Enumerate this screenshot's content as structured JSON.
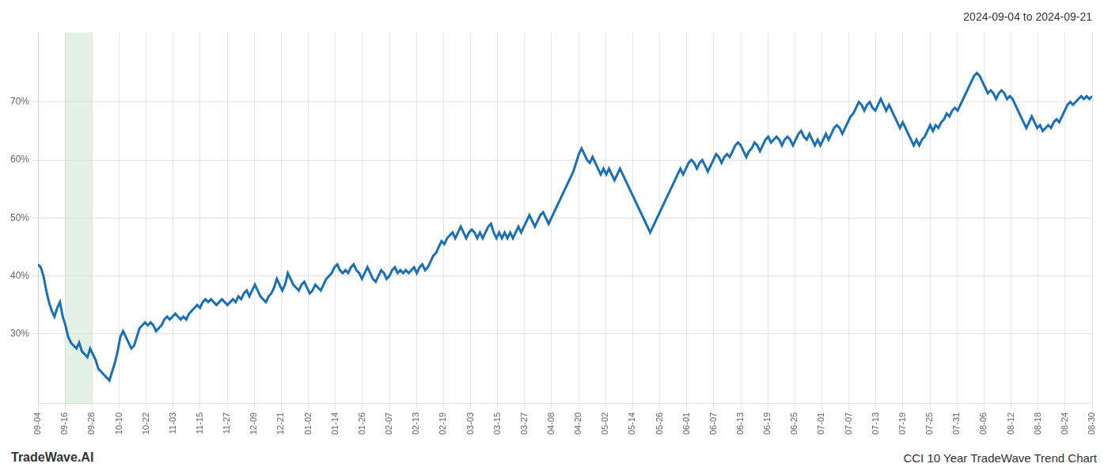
{
  "chart_data": {
    "type": "line",
    "title": "2024-09-04 to 2024-09-21",
    "annotations": [
      "TradeWave.AI",
      "CCI 10 Year TradeWave Trend Chart"
    ],
    "color": "#1a6fb5",
    "grid": true,
    "spans": [
      {
        "xmin": 9.846153846,
        "xmax": 19.692307692,
        "color": "#c8e6c9"
      }
    ],
    "xlim": [
      0,
      384
    ],
    "xticks": [
      {
        "value": 0,
        "label": "09-04"
      },
      {
        "value": 9.846153846,
        "label": "09-16"
      },
      {
        "value": 19.692307692,
        "label": "09-28"
      },
      {
        "value": 29.538461538,
        "label": "10-10"
      },
      {
        "value": 39.384615385,
        "label": "10-22"
      },
      {
        "value": 49.230769231,
        "label": "11-03"
      },
      {
        "value": 59.076923077,
        "label": "11-15"
      },
      {
        "value": 68.923076923,
        "label": "11-27"
      },
      {
        "value": 78.769230769,
        "label": "12-09"
      },
      {
        "value": 88.615384615,
        "label": "12-21"
      },
      {
        "value": 98.461538462,
        "label": "01-02"
      },
      {
        "value": 108.307692308,
        "label": "01-14"
      },
      {
        "value": 118.153846154,
        "label": "01-26"
      },
      {
        "value": 128,
        "label": "02-07"
      },
      {
        "value": 137.846153846,
        "label": "02-13"
      },
      {
        "value": 147.692307692,
        "label": "02-19"
      },
      {
        "value": 157.538461538,
        "label": "03-03"
      },
      {
        "value": 167.384615385,
        "label": "03-15"
      },
      {
        "value": 177.230769231,
        "label": "03-27"
      },
      {
        "value": 187.076923077,
        "label": "04-08"
      },
      {
        "value": 196.923076923,
        "label": "04-20"
      },
      {
        "value": 206.769230769,
        "label": "05-02"
      },
      {
        "value": 216.615384615,
        "label": "05-14"
      },
      {
        "value": 226.461538462,
        "label": "05-26"
      },
      {
        "value": 236.307692308,
        "label": "06-01"
      },
      {
        "value": 246.153846154,
        "label": "06-07"
      },
      {
        "value": 256,
        "label": "06-13"
      },
      {
        "value": 265.846153846,
        "label": "06-19"
      },
      {
        "value": 275.692307692,
        "label": "06-25"
      },
      {
        "value": 285.538461538,
        "label": "07-01"
      },
      {
        "value": 295.384615385,
        "label": "07-07"
      },
      {
        "value": 305.230769231,
        "label": "07-13"
      },
      {
        "value": 315.076923077,
        "label": "07-19"
      },
      {
        "value": 324.923076923,
        "label": "07-25"
      },
      {
        "value": 334.769230769,
        "label": "07-31"
      },
      {
        "value": 344.615384615,
        "label": "08-06"
      },
      {
        "value": 354.461538462,
        "label": "08-12"
      },
      {
        "value": 364.307692308,
        "label": "08-18"
      },
      {
        "value": 374.153846154,
        "label": "08-24"
      },
      {
        "value": 384,
        "label": "08-30"
      }
    ],
    "ylim": [
      18,
      82
    ],
    "yticks": [
      {
        "value": 30,
        "label": "30%"
      },
      {
        "value": 40,
        "label": "40%"
      },
      {
        "value": 50,
        "label": "50%"
      },
      {
        "value": 60,
        "label": "60%"
      },
      {
        "value": 70,
        "label": "70%"
      }
    ],
    "values": [
      42.0,
      41.5,
      40.0,
      37.5,
      35.5,
      34.0,
      33.0,
      34.5,
      35.5,
      33.0,
      31.5,
      29.5,
      28.5,
      28.0,
      27.5,
      28.5,
      27.0,
      26.5,
      26.0,
      27.5,
      26.5,
      25.5,
      24.0,
      23.5,
      23.0,
      22.5,
      22.0,
      23.5,
      25.0,
      27.0,
      29.5,
      30.5,
      29.5,
      28.5,
      27.5,
      28.0,
      29.5,
      31.0,
      31.5,
      32.0,
      31.5,
      32.0,
      31.5,
      30.5,
      31.0,
      31.5,
      32.5,
      33.0,
      32.5,
      33.0,
      33.5,
      33.0,
      32.5,
      33.0,
      32.5,
      33.5,
      34.0,
      34.5,
      35.0,
      34.5,
      35.5,
      36.0,
      35.5,
      36.0,
      35.5,
      35.0,
      35.5,
      36.0,
      35.5,
      35.0,
      35.5,
      36.0,
      35.5,
      36.5,
      36.0,
      37.0,
      37.5,
      36.5,
      37.5,
      38.5,
      37.5,
      36.5,
      36.0,
      35.5,
      36.5,
      37.0,
      38.0,
      39.5,
      38.5,
      37.5,
      38.5,
      40.5,
      39.5,
      38.5,
      38.0,
      37.5,
      38.5,
      39.0,
      38.0,
      37.0,
      37.5,
      38.5,
      38.0,
      37.5,
      38.5,
      39.5,
      40.0,
      40.5,
      41.5,
      42.0,
      41.0,
      40.5,
      41.0,
      40.5,
      41.5,
      42.0,
      41.0,
      40.5,
      39.5,
      40.5,
      41.5,
      40.5,
      39.5,
      39.0,
      40.0,
      41.0,
      40.5,
      39.5,
      40.0,
      41.0,
      41.5,
      40.5,
      41.0,
      40.5,
      41.0,
      40.5,
      41.0,
      41.5,
      40.5,
      41.5,
      42.0,
      41.0,
      41.5,
      42.5,
      43.5,
      44.0,
      45.0,
      46.0,
      45.5,
      46.5,
      47.0,
      47.5,
      46.5,
      47.5,
      48.5,
      47.5,
      46.5,
      47.5,
      48.0,
      47.5,
      46.5,
      47.5,
      46.5,
      47.5,
      48.5,
      49.0,
      47.5,
      46.5,
      47.5,
      46.5,
      47.5,
      46.5,
      47.5,
      46.5,
      47.5,
      48.5,
      47.5,
      48.5,
      49.5,
      50.5,
      49.5,
      48.5,
      49.5,
      50.5,
      51.0,
      50.0,
      49.0,
      50.0,
      51.0,
      52.0,
      53.0,
      54.0,
      55.0,
      56.0,
      57.0,
      58.0,
      59.5,
      61.0,
      62.0,
      61.0,
      60.0,
      59.5,
      60.5,
      59.5,
      58.5,
      57.5,
      58.5,
      57.5,
      58.5,
      57.5,
      56.5,
      57.5,
      58.5,
      57.5,
      56.5,
      55.5,
      54.5,
      53.5,
      52.5,
      51.5,
      50.5,
      49.5,
      48.5,
      47.5,
      48.5,
      49.5,
      50.5,
      51.5,
      52.5,
      53.5,
      54.5,
      55.5,
      56.5,
      57.5,
      58.5,
      57.5,
      58.5,
      59.5,
      60.0,
      59.5,
      58.5,
      59.5,
      60.0,
      59.0,
      58.0,
      59.0,
      60.0,
      61.0,
      60.5,
      59.5,
      60.5,
      61.0,
      60.5,
      61.5,
      62.5,
      63.0,
      62.5,
      61.5,
      60.5,
      61.5,
      62.0,
      63.0,
      62.5,
      61.5,
      62.5,
      63.5,
      64.0,
      63.0,
      63.5,
      64.0,
      63.5,
      62.5,
      63.5,
      64.0,
      63.5,
      62.5,
      63.5,
      64.5,
      65.0,
      64.0,
      63.5,
      64.5,
      63.5,
      62.5,
      63.5,
      62.5,
      63.5,
      64.5,
      63.5,
      64.5,
      65.5,
      66.0,
      65.5,
      64.5,
      65.5,
      66.5,
      67.5,
      68.0,
      69.0,
      70.0,
      69.5,
      68.5,
      69.5,
      70.0,
      69.0,
      68.5,
      69.5,
      70.5,
      69.5,
      68.5,
      69.5,
      68.5,
      67.5,
      66.5,
      65.5,
      66.5,
      65.5,
      64.5,
      63.5,
      62.5,
      63.5,
      62.5,
      63.5,
      64.0,
      65.0,
      66.0,
      65.0,
      66.0,
      65.5,
      66.5,
      67.0,
      68.0,
      67.5,
      68.5,
      69.0,
      68.5,
      69.5,
      70.5,
      71.5,
      72.5,
      73.5,
      74.5,
      75.0,
      74.5,
      73.5,
      72.5,
      71.5,
      72.0,
      71.5,
      70.5,
      71.5,
      72.0,
      71.5,
      70.5,
      71.0,
      70.5,
      69.5,
      68.5,
      67.5,
      66.5,
      65.5,
      66.5,
      67.5,
      66.5,
      65.5,
      66.0,
      65.0,
      65.5,
      66.0,
      65.5,
      66.5,
      67.0,
      66.5,
      67.5,
      68.5,
      69.5,
      70.0,
      69.5,
      70.0,
      70.5,
      71.0,
      70.5,
      71.0,
      70.5,
      71.0
    ]
  }
}
